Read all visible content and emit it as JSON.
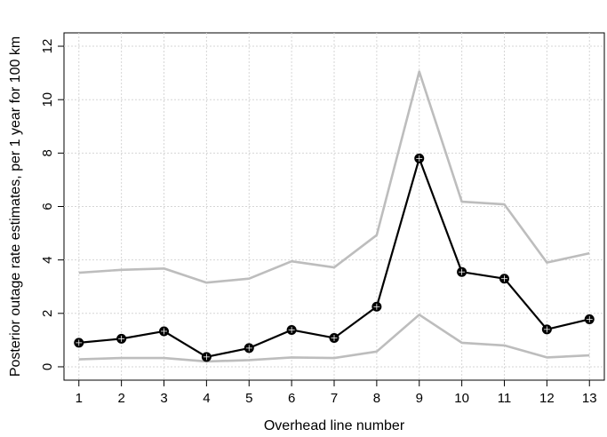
{
  "chart_data": {
    "type": "line",
    "xlabel": "Overhead line number",
    "ylabel": "Posterior outage rate estimates, per 1 year for 100 km",
    "x": [
      1,
      2,
      3,
      4,
      5,
      6,
      7,
      8,
      9,
      10,
      11,
      12,
      13
    ],
    "xticks": [
      "1",
      "2",
      "3",
      "4",
      "5",
      "6",
      "7",
      "8",
      "9",
      "10",
      "11",
      "12",
      "13"
    ],
    "xlim": [
      0.65,
      13.35
    ],
    "yticks": [
      "0",
      "2",
      "4",
      "6",
      "8",
      "10",
      "12"
    ],
    "ylim": [
      -0.5,
      12.5
    ],
    "grid": true,
    "series": [
      {
        "role": "estimate",
        "color": "#000000",
        "markers": true,
        "values": [
          0.9,
          1.05,
          1.33,
          0.37,
          0.7,
          1.38,
          1.08,
          2.25,
          7.8,
          3.55,
          3.3,
          1.4,
          1.78
        ]
      },
      {
        "role": "upper-bound",
        "color": "#bdbdbd",
        "markers": false,
        "values": [
          3.52,
          3.63,
          3.68,
          3.15,
          3.3,
          3.95,
          3.72,
          4.93,
          11.05,
          6.18,
          6.08,
          3.9,
          4.25
        ]
      },
      {
        "role": "lower-bound",
        "color": "#bdbdbd",
        "markers": false,
        "values": [
          0.28,
          0.33,
          0.33,
          0.2,
          0.25,
          0.35,
          0.33,
          0.57,
          1.95,
          0.9,
          0.8,
          0.35,
          0.43
        ]
      }
    ]
  }
}
